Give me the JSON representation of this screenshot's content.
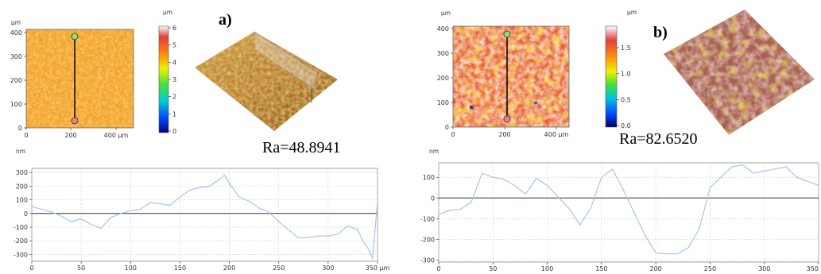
{
  "panels": [
    {
      "id": "a",
      "label": "a)",
      "ra": "Ra=48.8941",
      "map": {
        "y_unit": "µm",
        "y_ticks": [
          "400",
          "300",
          "200",
          "100",
          "0"
        ],
        "x_ticks": [
          "0",
          "200",
          "400 µm"
        ],
        "colorbar_unit": "µm",
        "colorbar_ticks": [
          "6",
          "5",
          "4",
          "3",
          "2",
          "1",
          "0"
        ]
      },
      "profile": {
        "y_unit": "nm",
        "y_ticks": [
          "300",
          "200",
          "100",
          "0",
          "-100",
          "-200",
          "-300"
        ],
        "x_ticks": [
          "0",
          "50",
          "100",
          "150",
          "200",
          "250",
          "300",
          "350 µm"
        ]
      }
    },
    {
      "id": "b",
      "label": "b)",
      "ra": "Ra=82.6520",
      "map": {
        "y_unit": "µm",
        "y_ticks": [
          "400",
          "300",
          "200",
          "100",
          "0"
        ],
        "x_ticks": [
          "0",
          "200",
          "400 µm"
        ],
        "colorbar_unit": "µm",
        "colorbar_ticks": [
          "1.5",
          "1.0",
          "0.5",
          "0.0"
        ]
      },
      "profile": {
        "y_unit": "nm",
        "y_ticks": [
          "100",
          "0",
          "-100",
          "-200",
          "-300"
        ],
        "x_ticks": [
          "0",
          "50",
          "100",
          "150",
          "200",
          "250",
          "300",
          "350 µm"
        ]
      }
    }
  ],
  "chart_data": [
    {
      "type": "line",
      "ylabel": "nm",
      "xlabel": "µm",
      "xlim": [
        0,
        350
      ],
      "ylim": [
        -350,
        330
      ],
      "grid": true,
      "x": [
        0,
        10,
        20,
        30,
        40,
        50,
        60,
        70,
        80,
        90,
        100,
        110,
        120,
        130,
        140,
        150,
        160,
        170,
        180,
        190,
        195,
        200,
        210,
        220,
        230,
        240,
        250,
        260,
        270,
        280,
        290,
        300,
        310,
        320,
        330,
        335,
        340,
        345,
        350
      ],
      "y": [
        50,
        30,
        10,
        -20,
        -60,
        -40,
        -80,
        -110,
        -30,
        0,
        20,
        30,
        80,
        70,
        60,
        120,
        170,
        190,
        200,
        250,
        280,
        220,
        120,
        90,
        40,
        10,
        -60,
        -120,
        -180,
        -175,
        -165,
        -165,
        -150,
        -90,
        -120,
        -200,
        -250,
        -330,
        90
      ]
    },
    {
      "type": "line",
      "ylabel": "nm",
      "xlabel": "µm",
      "xlim": [
        0,
        350
      ],
      "ylim": [
        -310,
        170
      ],
      "grid": true,
      "x": [
        0,
        10,
        20,
        30,
        40,
        50,
        60,
        70,
        80,
        90,
        100,
        110,
        120,
        130,
        140,
        150,
        160,
        170,
        180,
        190,
        200,
        210,
        220,
        230,
        240,
        250,
        260,
        270,
        280,
        290,
        300,
        310,
        320,
        330,
        340,
        350
      ],
      "y": [
        -80,
        -60,
        -55,
        -20,
        120,
        100,
        90,
        60,
        20,
        95,
        60,
        5,
        -50,
        -130,
        -50,
        100,
        140,
        40,
        -70,
        -180,
        -265,
        -270,
        -270,
        -240,
        -150,
        50,
        100,
        150,
        160,
        120,
        130,
        140,
        150,
        100,
        80,
        60
      ]
    }
  ]
}
